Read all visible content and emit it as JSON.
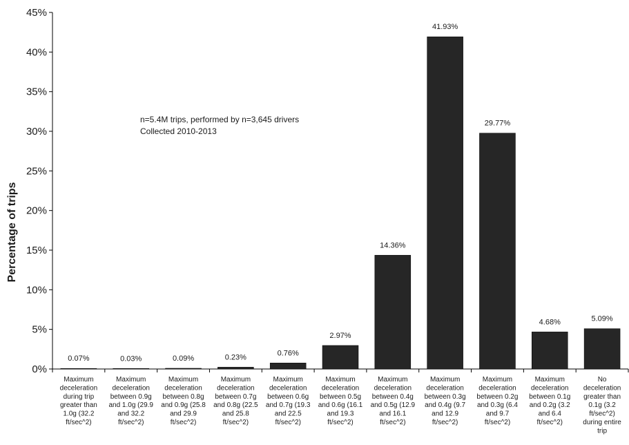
{
  "chart_data": {
    "type": "bar",
    "title": "",
    "ylabel": "Percentage of trips",
    "xlabel": "",
    "ylim": [
      0,
      45
    ],
    "yticks": [
      0,
      5,
      10,
      15,
      20,
      25,
      30,
      35,
      40,
      45
    ],
    "ytick_suffix": "%",
    "bar_color": "#262626",
    "annotation": [
      "n=5.4M trips, performed by n=3,645 drivers",
      "Collected 2010-2013"
    ],
    "categories": [
      [
        "Maximum",
        "deceleration",
        "during trip",
        "greater than",
        "1.0g (32.2",
        "ft/sec^2)"
      ],
      [
        "Maximum",
        "deceleration",
        "between 0.9g",
        "and 1.0g (29.9",
        "and 32.2",
        "ft/sec^2)"
      ],
      [
        "Maximum",
        "deceleration",
        "between 0.8g",
        "and 0.9g (25.8",
        "and 29.9",
        "ft/sec^2)"
      ],
      [
        "Maximum",
        "deceleration",
        "between 0.7g",
        "and 0.8g (22.5",
        "and 25.8",
        "ft/sec^2)"
      ],
      [
        "Maximum",
        "deceleration",
        "between 0.6g",
        "and 0.7g (19.3",
        "and 22.5",
        "ft/sec^2)"
      ],
      [
        "Maximum",
        "deceleration",
        "between 0.5g",
        "and 0.6g (16.1",
        "and 19.3",
        "ft/sec^2)"
      ],
      [
        "Maximum",
        "deceleration",
        "between 0.4g",
        "and 0.5g (12.9",
        "and 16.1",
        "ft/sec^2)"
      ],
      [
        "Maximum",
        "deceleration",
        "between 0.3g",
        "and 0.4g (9.7",
        "and 12.9",
        "ft/sec^2)"
      ],
      [
        "Maximum",
        "deceleration",
        "between 0.2g",
        "and 0.3g (6.4",
        "and 9.7",
        "ft/sec^2)"
      ],
      [
        "Maximum",
        "deceleration",
        "between 0.1g",
        "and 0.2g (3.2",
        "and 6.4",
        "ft/sec^2)"
      ],
      [
        "No",
        "deceleration",
        "greater than",
        "0.1g (3.2",
        "ft/sec^2)",
        "during entire",
        "trip"
      ]
    ],
    "values": [
      0.07,
      0.03,
      0.09,
      0.23,
      0.76,
      2.97,
      14.36,
      41.93,
      29.77,
      4.68,
      5.09
    ],
    "value_labels": [
      "0.07%",
      "0.03%",
      "0.09%",
      "0.23%",
      "0.76%",
      "2.97%",
      "14.36%",
      "41.93%",
      "29.77%",
      "4.68%",
      "5.09%"
    ]
  }
}
